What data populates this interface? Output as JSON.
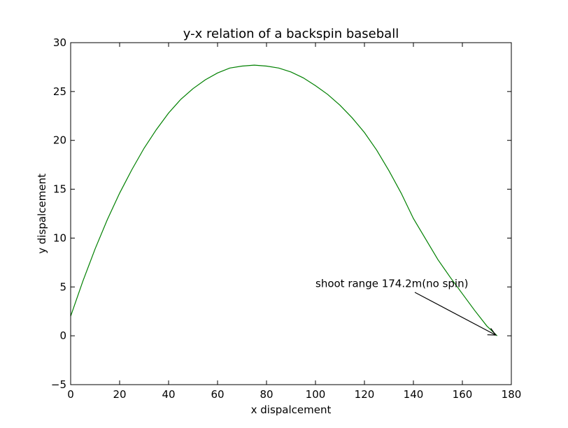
{
  "chart_data": {
    "type": "line",
    "title": "y-x relation of a backspin baseball",
    "xlabel": "x dispalcement",
    "ylabel": "y dispalcement",
    "xlim": [
      0,
      180
    ],
    "ylim": [
      -5,
      30
    ],
    "xticks": [
      0,
      20,
      40,
      60,
      80,
      100,
      120,
      140,
      160,
      180
    ],
    "yticks": [
      -5,
      0,
      5,
      10,
      15,
      20,
      25,
      30
    ],
    "xtick_labels": [
      "0",
      "20",
      "40",
      "60",
      "80",
      "100",
      "120",
      "140",
      "160",
      "180"
    ],
    "ytick_labels": [
      "−5",
      "0",
      "5",
      "10",
      "15",
      "20",
      "25",
      "30"
    ],
    "grid": false,
    "series": [
      {
        "color": "#008000",
        "x": [
          0,
          5,
          10,
          15,
          20,
          25,
          30,
          35,
          40,
          45,
          50,
          55,
          60,
          65,
          70,
          75,
          80,
          85,
          90,
          95,
          100,
          105,
          110,
          115,
          120,
          125,
          130,
          135,
          140,
          145,
          150,
          155,
          160,
          165,
          170,
          174.2
        ],
        "y": [
          2.0,
          5.6,
          8.9,
          11.9,
          14.6,
          17.0,
          19.2,
          21.1,
          22.8,
          24.2,
          25.3,
          26.2,
          26.9,
          27.4,
          27.6,
          27.7,
          27.6,
          27.4,
          27.0,
          26.4,
          25.6,
          24.7,
          23.6,
          22.3,
          20.8,
          19.0,
          16.9,
          14.6,
          12.0,
          9.9,
          7.8,
          6.0,
          4.3,
          2.6,
          1.0,
          0.0
        ]
      }
    ],
    "annotations": [
      {
        "text": "shoot range 174.2m(no spin)",
        "text_x": 100,
        "text_y": 5,
        "arrow_to_x": 174.2,
        "arrow_to_y": 0
      }
    ]
  }
}
